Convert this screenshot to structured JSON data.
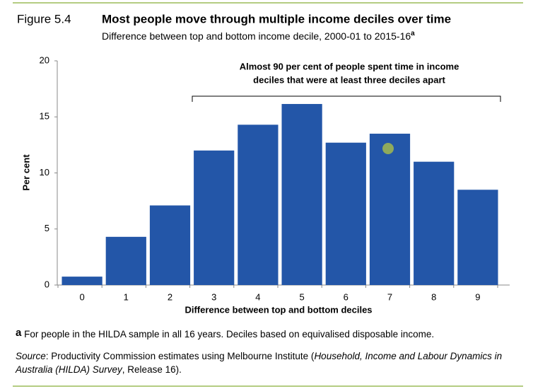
{
  "chart_data": {
    "type": "bar",
    "figure_label": "Figure 5.4",
    "title": "Most people move through multiple income deciles over time",
    "subtitle": "Difference between top and bottom income decile, 2000-01 to 2015-16",
    "subtitle_note": "a",
    "annotation": [
      "Almost 90 per cent of people spent time in income",
      "deciles that were at least three deciles apart"
    ],
    "categories": [
      "0",
      "1",
      "2",
      "3",
      "4",
      "5",
      "6",
      "7",
      "8",
      "9"
    ],
    "values": [
      0.75,
      4.3,
      7.1,
      12.0,
      14.3,
      16.15,
      12.7,
      13.5,
      11.0,
      8.5
    ],
    "color": "#2356a8",
    "ylim": [
      0,
      20
    ],
    "yticks": [
      0,
      5,
      10,
      15,
      20
    ],
    "y_label": "Per cent",
    "x_label": "Difference between top and bottom deciles",
    "note_marker": "a",
    "note": "For people in the HILDA sample in all 16 years. Deciles based on equivalised disposable income.",
    "source": [
      "Source",
      ": Productivity Commission estimates using Melbourne Institute (",
      "Household, Income and Labour Dynamics in Australia (HILDA) Survey",
      ", Release 16)."
    ]
  }
}
